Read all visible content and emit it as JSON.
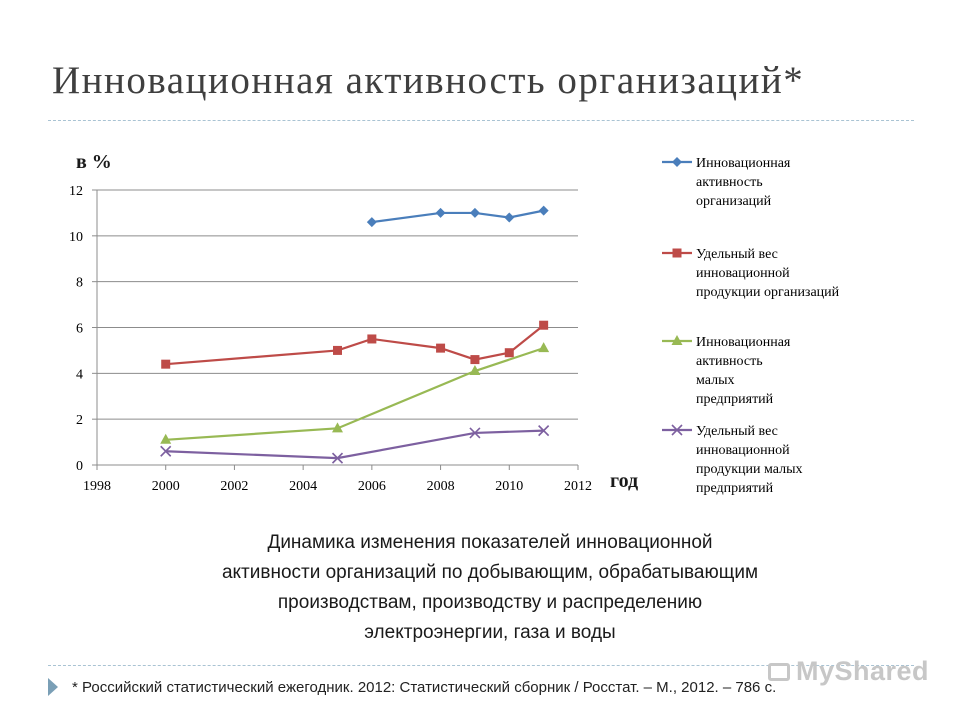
{
  "slide": {
    "title": "Инновационная активность организаций*",
    "caption": [
      "Динамика изменения показателей инновационной",
      "активности организаций по добывающим, обрабатывающим",
      "производствам, производству и распределению",
      "электроэнергии, газа и воды"
    ],
    "footnote": "* Российский статистический ежегодник. 2012: Статистический сборник / Росстат. – М., 2012. – 786 с.",
    "watermark": "MyShared",
    "watermark_icon": "presentation-icon"
  },
  "chart_data": {
    "type": "line",
    "ylabel": "в %",
    "xlabel": "год",
    "xlim": [
      1998,
      2012
    ],
    "ylim": [
      0,
      12
    ],
    "xticks": [
      1998,
      2000,
      2002,
      2004,
      2006,
      2008,
      2010,
      2012
    ],
    "yticks": [
      0,
      2,
      4,
      6,
      8,
      10,
      12
    ],
    "grid": "horizontal",
    "legend_position": "right",
    "series": [
      {
        "name": [
          "Инновационная",
          "активность",
          "организаций"
        ],
        "color": "#4a7ebb",
        "marker": "diamond",
        "points": [
          [
            2006,
            10.6
          ],
          [
            2008,
            11.0
          ],
          [
            2009,
            11.0
          ],
          [
            2010,
            10.8
          ],
          [
            2011,
            11.1
          ]
        ]
      },
      {
        "name": [
          "Удельный вес",
          "инновационной",
          "продукции организаций"
        ],
        "color": "#be4b48",
        "marker": "square",
        "points": [
          [
            2000,
            4.4
          ],
          [
            2005,
            5.0
          ],
          [
            2006,
            5.5
          ],
          [
            2008,
            5.1
          ],
          [
            2009,
            4.6
          ],
          [
            2010,
            4.9
          ],
          [
            2011,
            6.1
          ]
        ]
      },
      {
        "name": [
          "Инновационная",
          "активность",
          "малых",
          "предприятий"
        ],
        "color": "#98b954",
        "marker": "triangle",
        "points": [
          [
            2000,
            1.1
          ],
          [
            2005,
            1.6
          ],
          [
            2009,
            4.1
          ],
          [
            2011,
            5.1
          ]
        ]
      },
      {
        "name": [
          "Удельный вес",
          "инновационной",
          "продукции малых",
          "предприятий"
        ],
        "color": "#7d60a0",
        "marker": "x",
        "points": [
          [
            2000,
            0.6
          ],
          [
            2005,
            0.3
          ],
          [
            2009,
            1.4
          ],
          [
            2011,
            1.5
          ]
        ]
      }
    ]
  }
}
